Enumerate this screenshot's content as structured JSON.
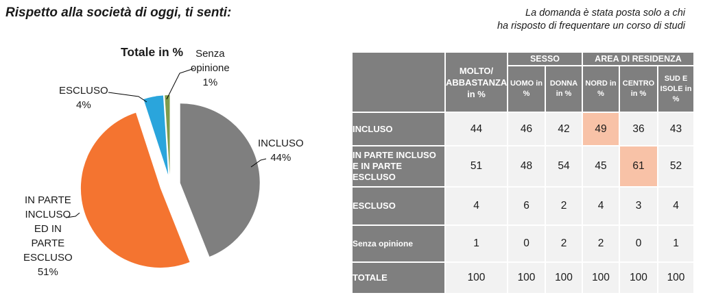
{
  "title": "Rispetto alla società di oggi, ti senti:",
  "note_lines": [
    "La domanda è stata posta solo a chi",
    "ha risposto di frequentare un corso di studi"
  ],
  "chart_data": {
    "type": "pie",
    "title": "Totale in %",
    "slices": [
      {
        "label_lines": [
          "INCLUSO",
          "44%"
        ],
        "value": 44,
        "color": "#7f7f7f"
      },
      {
        "label_lines": [
          "IN PARTE",
          "INCLUSO",
          "ED IN",
          "PARTE",
          "ESCLUSO",
          "51%"
        ],
        "value": 51,
        "color": "#f47430"
      },
      {
        "label_lines": [
          "ESCLUSO",
          "4%"
        ],
        "value": 4,
        "color": "#2aa5dc"
      },
      {
        "label_lines": [
          "Senza",
          "opinione",
          "1%"
        ],
        "value": 1,
        "color": "#7f9c4c"
      }
    ]
  },
  "table": {
    "main_header": "MOLTO/ ABBASTANZA in %",
    "groups": [
      {
        "label": "SESSO",
        "cols": [
          "UOMO in %",
          "DONNA in %"
        ]
      },
      {
        "label": "AREA DI RESIDENZA",
        "cols": [
          "NORD in %",
          "CENTRO in %",
          "SUD E ISOLE in %"
        ]
      }
    ],
    "rows": [
      {
        "label": "INCLUSO",
        "values": [
          "44",
          "46",
          "42",
          "49",
          "36",
          "43"
        ],
        "highlight": [
          3
        ]
      },
      {
        "label": "IN PARTE INCLUSO E IN PARTE ESCLUSO",
        "values": [
          "51",
          "48",
          "54",
          "45",
          "61",
          "52"
        ],
        "highlight": [
          4
        ]
      },
      {
        "label": "ESCLUSO",
        "values": [
          "4",
          "6",
          "2",
          "4",
          "3",
          "4"
        ],
        "highlight": []
      },
      {
        "label": "Senza opinione",
        "values": [
          "1",
          "0",
          "2",
          "2",
          "0",
          "1"
        ],
        "highlight": []
      },
      {
        "label": "TOTALE",
        "values": [
          "100",
          "100",
          "100",
          "100",
          "100",
          "100"
        ],
        "highlight": []
      }
    ]
  }
}
